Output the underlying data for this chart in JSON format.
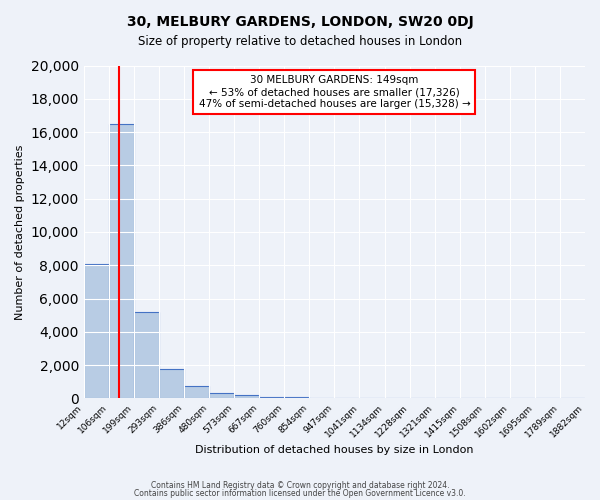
{
  "title": "30, MELBURY GARDENS, LONDON, SW20 0DJ",
  "subtitle": "Size of property relative to detached houses in London",
  "xlabel": "Distribution of detached houses by size in London",
  "ylabel": "Number of detached properties",
  "bar_color": "#b8cce4",
  "bar_edge_color": "#4472c4",
  "background_color": "#eef2f9",
  "grid_color": "#ffffff",
  "bin_labels": [
    "12sqm",
    "106sqm",
    "199sqm",
    "293sqm",
    "386sqm",
    "480sqm",
    "573sqm",
    "667sqm",
    "760sqm",
    "854sqm",
    "947sqm",
    "1041sqm",
    "1134sqm",
    "1228sqm",
    "1321sqm",
    "1415sqm",
    "1508sqm",
    "1602sqm",
    "1695sqm",
    "1789sqm",
    "1882sqm"
  ],
  "bar_values": [
    8100,
    16500,
    5200,
    1750,
    750,
    300,
    200,
    100,
    80,
    0,
    0,
    0,
    0,
    0,
    0,
    0,
    0,
    0,
    0,
    0
  ],
  "red_line_x": 2,
  "red_line_label": "149sqm",
  "property_sqm": 149,
  "annotation_title": "30 MELBURY GARDENS: 149sqm",
  "annotation_line1": "← 53% of detached houses are smaller (17,326)",
  "annotation_line2": "47% of semi-detached houses are larger (15,328) →",
  "ylim": [
    0,
    20000
  ],
  "yticks": [
    0,
    2000,
    4000,
    6000,
    8000,
    10000,
    12000,
    14000,
    16000,
    18000,
    20000
  ],
  "footer_line1": "Contains HM Land Registry data © Crown copyright and database right 2024.",
  "footer_line2": "Contains public sector information licensed under the Open Government Licence v3.0."
}
